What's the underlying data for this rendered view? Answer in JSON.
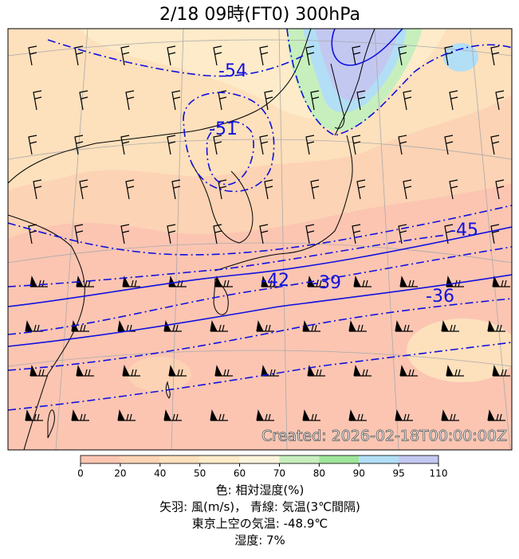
{
  "map": {
    "title": "2/18  09時(FT0)    300hPa",
    "contours": [
      {
        "value": -54
      },
      {
        "value": -51
      },
      {
        "value": -45
      },
      {
        "value": -42
      },
      {
        "value": -39
      },
      {
        "value": -36
      }
    ],
    "created": "Created: 2026-02-18T00:00:00Z"
  },
  "colorbar": {
    "bounds": [
      0,
      20,
      40,
      50,
      60,
      70,
      80,
      90,
      95,
      110
    ],
    "colors": [
      "#fbc5b2",
      "#fcd3b4",
      "#fde0bc",
      "#fdebc9",
      "#fdf4dc",
      "#c6efbd",
      "#9ee59a",
      "#b2dff6",
      "#c3c8f1"
    ]
  },
  "caption": {
    "line1": "色: 相対湿度(%)",
    "line2": "矢羽: 風(m/s)， 青線: 気温(3℃間隔)",
    "line3": "東京上空の気温: -48.9℃",
    "line4": "湿度: 7%"
  }
}
